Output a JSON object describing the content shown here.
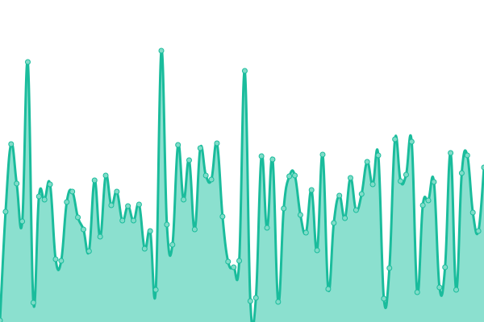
{
  "chart_data": {
    "type": "area",
    "title": "",
    "xlabel": "",
    "ylabel": "",
    "ylim": [
      0,
      400
    ],
    "grid": false,
    "legend": "none",
    "curve": "smooth",
    "colors": {
      "line": "#1abc9c",
      "fill": "#8be0cf",
      "point_fill": "#80dcc8",
      "point_stroke": "#1abc9c"
    },
    "values": [
      2,
      137,
      221,
      172,
      125,
      323,
      24,
      156,
      152,
      171,
      78,
      76,
      149,
      162,
      130,
      115,
      88,
      176,
      106,
      182,
      145,
      162,
      126,
      144,
      126,
      146,
      91,
      113,
      40,
      337,
      121,
      96,
      220,
      152,
      201,
      115,
      216,
      182,
      177,
      222,
      131,
      75,
      68,
      76,
      312,
      26,
      30,
      206,
      117,
      202,
      25,
      141,
      181,
      182,
      133,
      111,
      164,
      89,
      208,
      41,
      123,
      157,
      129,
      179,
      139,
      159,
      199,
      171,
      207,
      29,
      67,
      227,
      175,
      183,
      224,
      37,
      145,
      151,
      174,
      43,
      68,
      210,
      40,
      185,
      207,
      136,
      113,
      192
    ]
  }
}
